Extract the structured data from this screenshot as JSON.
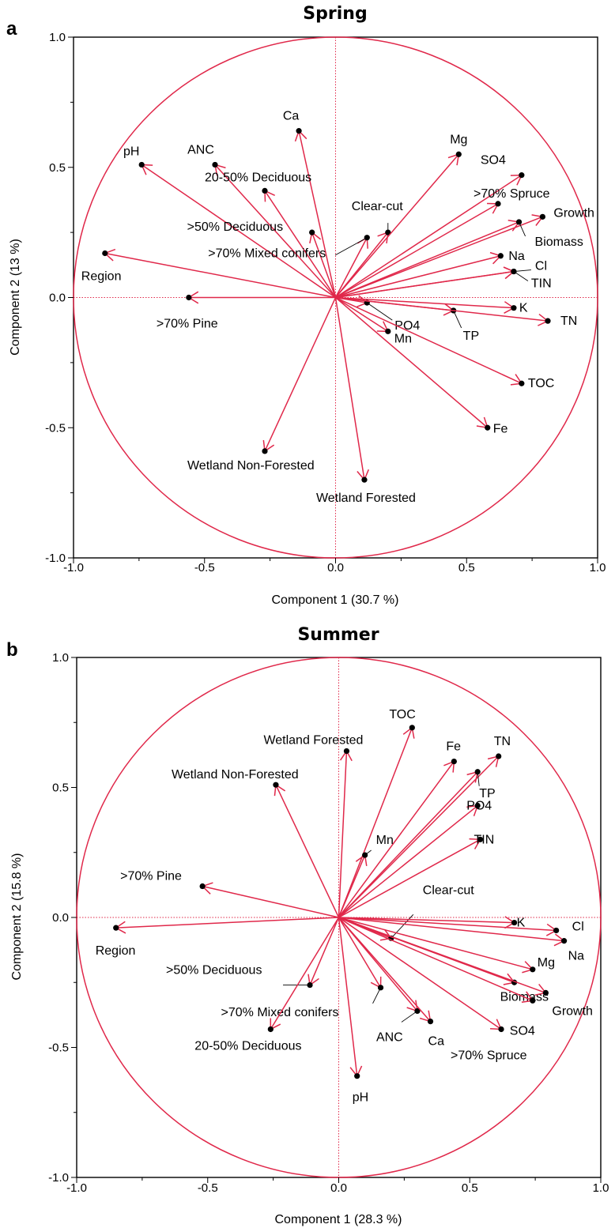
{
  "chart_data": [
    {
      "type": "scatter",
      "panel": "a",
      "title": "Spring",
      "xlabel": "Component 1  (30.7 %)",
      "ylabel": "Component 2  (13 %)",
      "xlim": [
        -1.0,
        1.0
      ],
      "ylim": [
        -1.0,
        1.0
      ],
      "xticks": [
        "-1.0",
        "-0.5",
        "0.0",
        "0.5",
        "1.0"
      ],
      "yticks": [
        "-1.0",
        "-0.5",
        "0.0",
        "0.5",
        "1.0"
      ],
      "unit_circle": true,
      "reference_lines": "dotted at x=0 and y=0",
      "colors": {
        "vectors": "#e0284a",
        "points": "#000000"
      },
      "variables": [
        {
          "name": "pH",
          "x": -0.74,
          "y": 0.51
        },
        {
          "name": "ANC",
          "x": -0.46,
          "y": 0.51
        },
        {
          "name": "Ca",
          "x": -0.14,
          "y": 0.64
        },
        {
          "name": "20-50% Deciduous",
          "x": -0.27,
          "y": 0.41
        },
        {
          "name": ">50% Deciduous",
          "x": -0.09,
          "y": 0.25
        },
        {
          "name": ">70% Mixed conifers",
          "x": 0.12,
          "y": 0.23
        },
        {
          "name": "Clear-cut",
          "x": 0.2,
          "y": 0.25
        },
        {
          "name": "Mg",
          "x": 0.47,
          "y": 0.55
        },
        {
          "name": "SO4",
          "x": 0.71,
          "y": 0.47
        },
        {
          "name": ">70% Spruce",
          "x": 0.62,
          "y": 0.36
        },
        {
          "name": "Growth",
          "x": 0.79,
          "y": 0.31
        },
        {
          "name": "Biomass",
          "x": 0.7,
          "y": 0.29
        },
        {
          "name": "Na",
          "x": 0.63,
          "y": 0.16
        },
        {
          "name": "Cl",
          "x": 0.68,
          "y": 0.1
        },
        {
          "name": "TIN",
          "x": 0.68,
          "y": 0.1
        },
        {
          "name": "Region",
          "x": -0.88,
          "y": 0.17
        },
        {
          "name": ">70% Pine",
          "x": -0.56,
          "y": 0.0
        },
        {
          "name": "PO4",
          "x": 0.12,
          "y": -0.02
        },
        {
          "name": "TP",
          "x": 0.45,
          "y": -0.05
        },
        {
          "name": "K",
          "x": 0.68,
          "y": -0.04
        },
        {
          "name": "TN",
          "x": 0.81,
          "y": -0.09
        },
        {
          "name": "Mn",
          "x": 0.2,
          "y": -0.13
        },
        {
          "name": "TOC",
          "x": 0.71,
          "y": -0.33
        },
        {
          "name": "Fe",
          "x": 0.58,
          "y": -0.5
        },
        {
          "name": "Wetland Non-Forested",
          "x": -0.27,
          "y": -0.59
        },
        {
          "name": "Wetland Forested",
          "x": 0.11,
          "y": -0.7
        }
      ]
    },
    {
      "type": "scatter",
      "panel": "b",
      "title": "Summer",
      "xlabel": "Component 1  (28.3 %)",
      "ylabel": "Component 2  (15.8 %)",
      "xlim": [
        -1.0,
        1.0
      ],
      "ylim": [
        -1.0,
        1.0
      ],
      "xticks": [
        "-1.0",
        "-0.5",
        "0.0",
        "0.5",
        "1.0"
      ],
      "yticks": [
        "-1.0",
        "-0.5",
        "0.0",
        "0.5",
        "1.0"
      ],
      "unit_circle": true,
      "reference_lines": "dotted at x=0 and y=0",
      "colors": {
        "vectors": "#e0284a",
        "points": "#000000"
      },
      "variables": [
        {
          "name": "TOC",
          "x": 0.28,
          "y": 0.73
        },
        {
          "name": "Wetland Forested",
          "x": 0.03,
          "y": 0.64
        },
        {
          "name": "Wetland Non-Forested",
          "x": -0.24,
          "y": 0.51
        },
        {
          "name": "Fe",
          "x": 0.44,
          "y": 0.6
        },
        {
          "name": "TN",
          "x": 0.61,
          "y": 0.62
        },
        {
          "name": "TP",
          "x": 0.53,
          "y": 0.56
        },
        {
          "name": "PO4",
          "x": 0.53,
          "y": 0.43
        },
        {
          "name": "TIN",
          "x": 0.54,
          "y": 0.3
        },
        {
          "name": "Mn",
          "x": 0.1,
          "y": 0.24
        },
        {
          "name": ">70% Pine",
          "x": -0.52,
          "y": 0.12
        },
        {
          "name": "Region",
          "x": -0.85,
          "y": -0.04
        },
        {
          "name": "Clear-cut",
          "x": 0.2,
          "y": -0.08
        },
        {
          "name": "K",
          "x": 0.67,
          "y": -0.02
        },
        {
          "name": "Cl",
          "x": 0.83,
          "y": -0.05
        },
        {
          "name": "Na",
          "x": 0.86,
          "y": -0.09
        },
        {
          "name": "Mg",
          "x": 0.74,
          "y": -0.2
        },
        {
          "name": "Biomass",
          "x": 0.67,
          "y": -0.25
        },
        {
          "name": "Growth",
          "x": 0.79,
          "y": -0.29
        },
        {
          "name": "SO4",
          "x": 0.74,
          "y": -0.32
        },
        {
          "name": ">70% Spruce",
          "x": 0.62,
          "y": -0.43
        },
        {
          "name": ">50% Deciduous",
          "x": -0.11,
          "y": -0.26
        },
        {
          "name": ">70% Mixed conifers",
          "x": 0.16,
          "y": -0.27
        },
        {
          "name": "ANC",
          "x": 0.3,
          "y": -0.36
        },
        {
          "name": "Ca",
          "x": 0.35,
          "y": -0.4
        },
        {
          "name": "20-50% Deciduous",
          "x": -0.26,
          "y": -0.43
        },
        {
          "name": "pH",
          "x": 0.07,
          "y": -0.61
        }
      ]
    }
  ]
}
